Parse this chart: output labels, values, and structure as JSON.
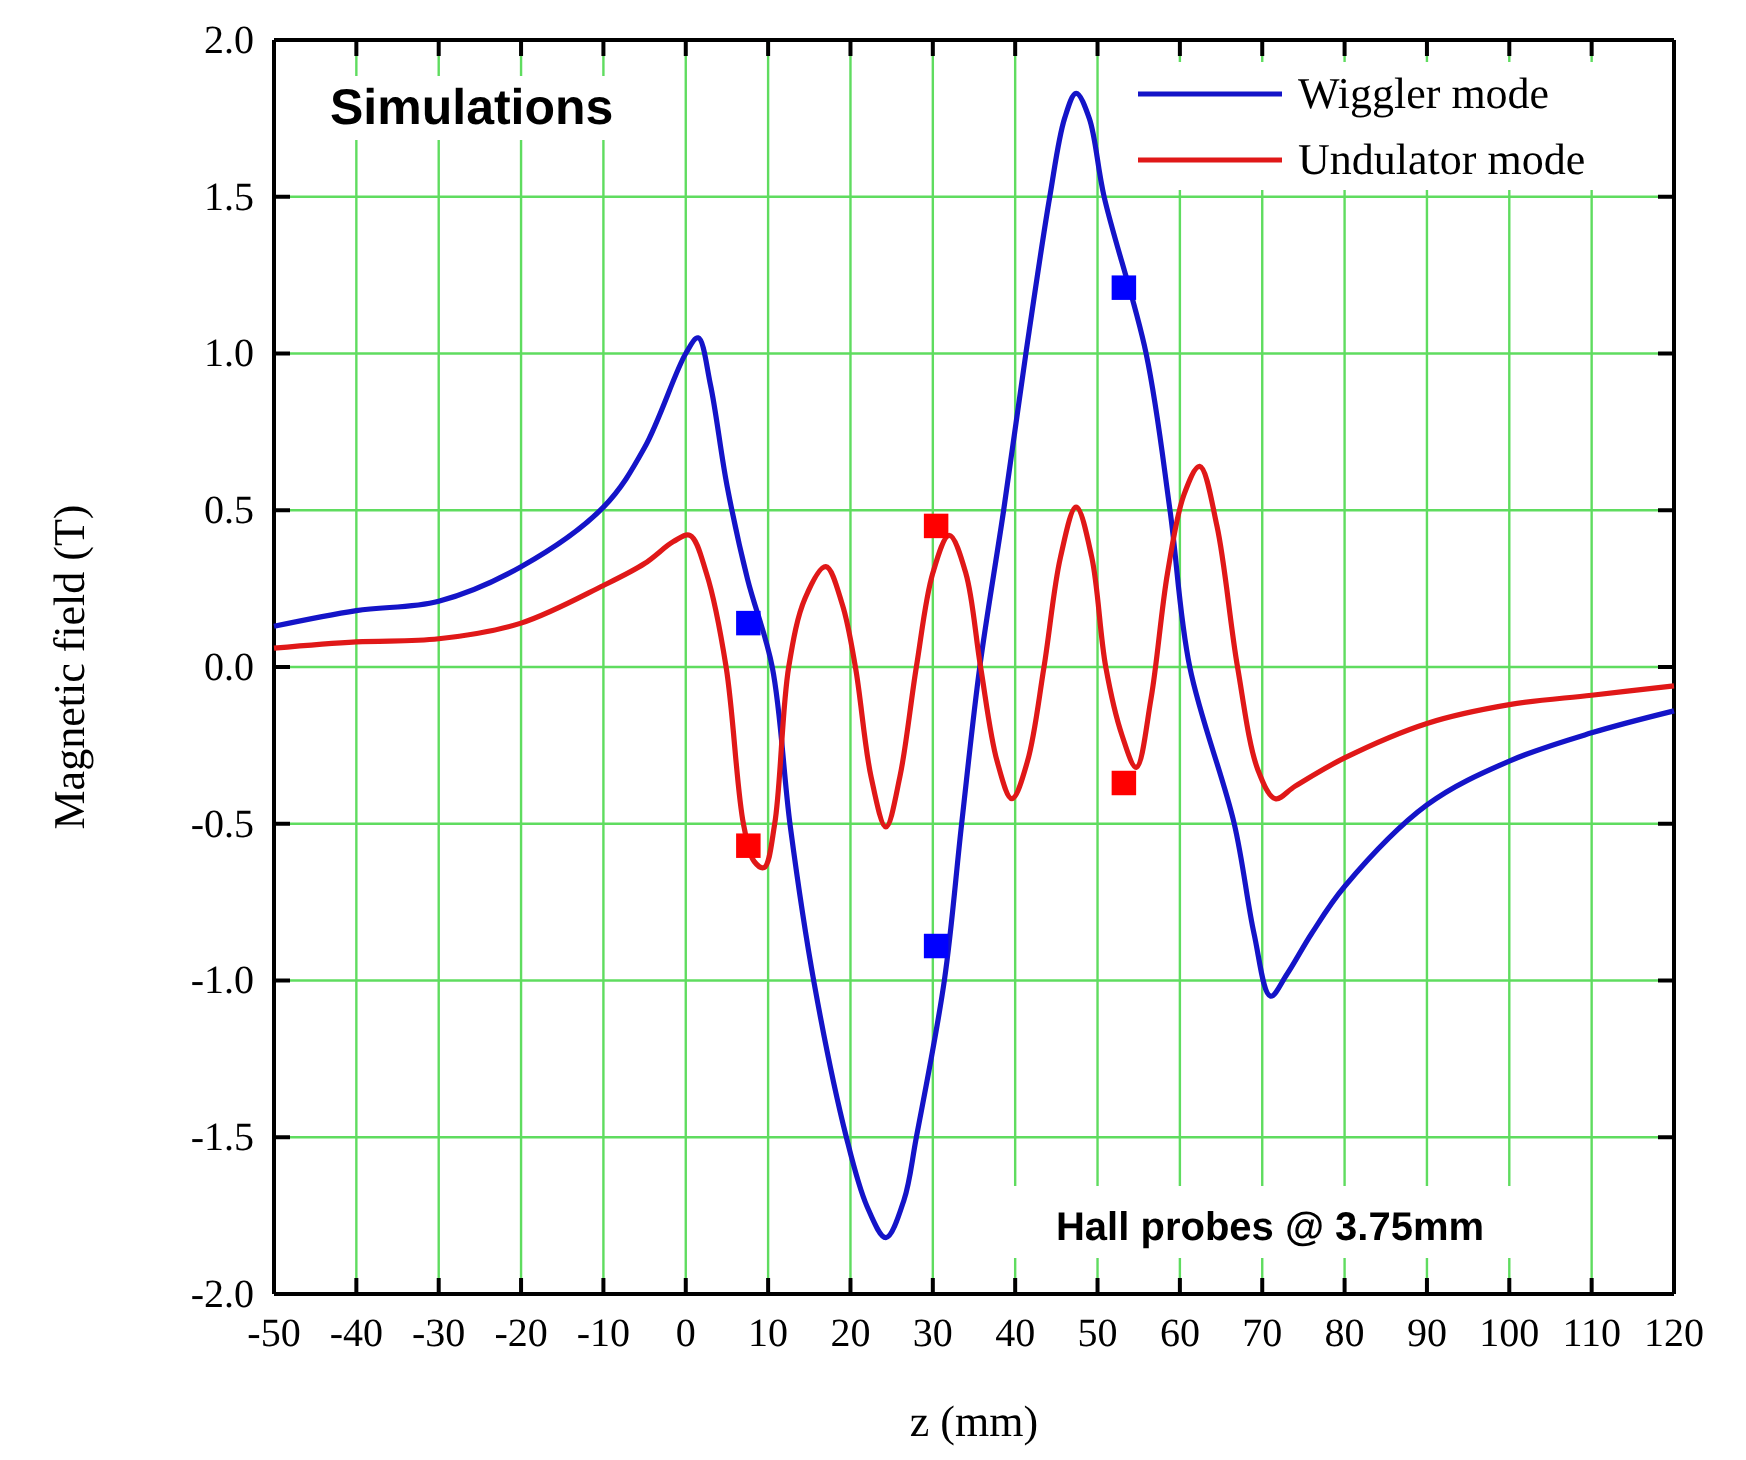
{
  "chart_data": {
    "type": "line",
    "xlabel": "z (mm)",
    "ylabel": "Magnetic field (T)",
    "xlim": [
      -50,
      120
    ],
    "xticks": [
      -50,
      -40,
      -30,
      -20,
      -10,
      0,
      10,
      20,
      30,
      40,
      50,
      60,
      70,
      80,
      90,
      100,
      110,
      120
    ],
    "ylim": [
      -2.0,
      2.0
    ],
    "yticks": [
      {
        "value": -2,
        "label": "-2.0"
      },
      {
        "value": -1.5,
        "label": "-1.5"
      },
      {
        "value": -1,
        "label": "-1.0"
      },
      {
        "value": -0.5,
        "label": "-0.5"
      },
      {
        "value": 0,
        "label": "0.0"
      },
      {
        "value": 0.5,
        "label": "0.5"
      },
      {
        "value": 1,
        "label": "1.0"
      },
      {
        "value": 1.5,
        "label": "1.5"
      },
      {
        "value": 2,
        "label": "2.0"
      }
    ],
    "grid": true,
    "legend": "top right",
    "annotations": [
      "Simulations",
      "Hall probes @ 3.75mm"
    ],
    "series": [
      {
        "name": "Wiggler mode",
        "color": "#1414c8",
        "x": [
          -50,
          -40,
          -30,
          -20,
          -10,
          -5,
          0,
          1.5,
          3,
          5,
          7.5,
          10.5,
          12.7,
          15.6,
          19.5,
          22,
          24.3,
          26.5,
          28,
          31.4,
          33.5,
          35.7,
          38.6,
          41.3,
          44.2,
          46,
          47.4,
          49,
          50.8,
          55.9,
          58.8,
          61.2,
          66.6,
          69,
          71,
          73,
          76,
          80,
          90,
          100,
          110,
          120
        ],
        "values": [
          0.13,
          0.18,
          0.21,
          0.32,
          0.51,
          0.7,
          1.0,
          1.05,
          0.9,
          0.58,
          0.28,
          0.0,
          -0.51,
          -1.01,
          -1.5,
          -1.72,
          -1.82,
          -1.7,
          -1.5,
          -1.0,
          -0.5,
          0.0,
          0.5,
          1.0,
          1.5,
          1.75,
          1.83,
          1.75,
          1.5,
          1.0,
          0.5,
          0.0,
          -0.5,
          -0.85,
          -1.05,
          -0.98,
          -0.85,
          -0.7,
          -0.44,
          -0.3,
          -0.21,
          -0.14
        ]
      },
      {
        "name": "Undulator mode",
        "color": "#e01818",
        "x": [
          -50,
          -40,
          -30,
          -20,
          -10,
          -5,
          -1.5,
          0.5,
          2.5,
          4.9,
          7,
          8.3,
          9.5,
          10.8,
          12.5,
          14.5,
          17,
          19,
          20.6,
          22.5,
          24.3,
          26,
          28,
          30,
          32,
          34,
          35.8,
          37.8,
          39.6,
          41.5,
          43.5,
          45.5,
          47.4,
          49.3,
          51,
          53,
          54.7,
          56.5,
          58.5,
          60.5,
          62.4,
          64.5,
          67,
          69.5,
          71.6,
          74,
          80,
          90,
          100,
          110,
          120
        ],
        "values": [
          0.06,
          0.08,
          0.09,
          0.14,
          0.26,
          0.33,
          0.4,
          0.42,
          0.3,
          0.0,
          -0.5,
          -0.62,
          -0.64,
          -0.5,
          0.0,
          0.22,
          0.32,
          0.2,
          0.0,
          -0.35,
          -0.51,
          -0.35,
          0.0,
          0.3,
          0.42,
          0.3,
          0.0,
          -0.3,
          -0.42,
          -0.3,
          0.0,
          0.35,
          0.51,
          0.35,
          0.0,
          -0.22,
          -0.32,
          -0.1,
          0.3,
          0.55,
          0.64,
          0.45,
          0.0,
          -0.33,
          -0.42,
          -0.38,
          -0.29,
          -0.18,
          -0.12,
          -0.09,
          -0.06
        ]
      },
      {
        "type": "scatter",
        "marker": "square",
        "color": "#0000ff",
        "x": [
          7.6,
          30.4,
          53.2
        ],
        "values": [
          0.14,
          -0.89,
          1.21
        ]
      },
      {
        "type": "scatter",
        "marker": "square",
        "color": "#ff0000",
        "x": [
          7.6,
          30.4,
          53.2
        ],
        "values": [
          -0.57,
          0.45,
          -0.37
        ]
      }
    ]
  }
}
